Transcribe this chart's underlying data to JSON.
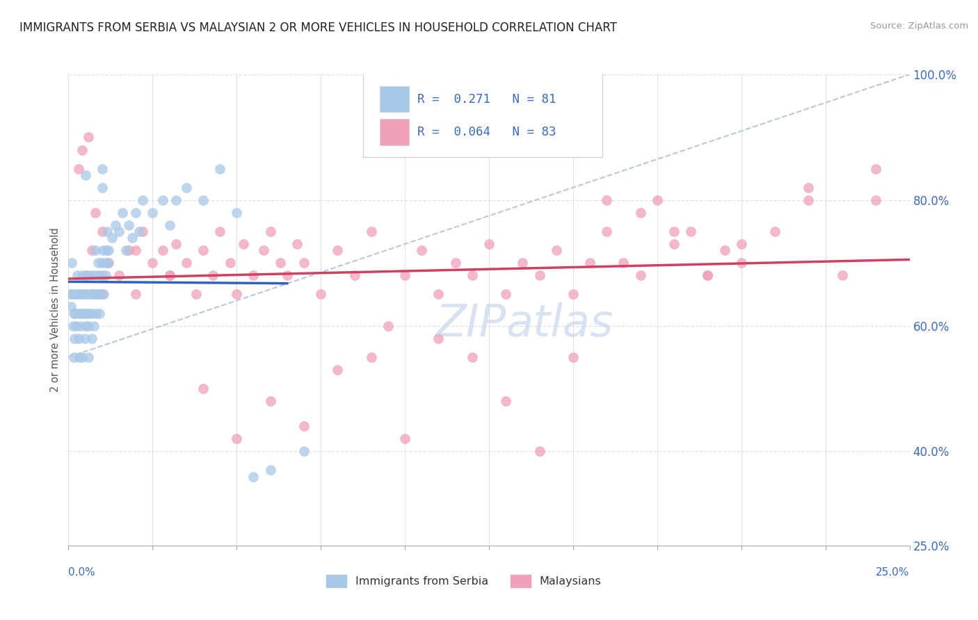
{
  "title": "IMMIGRANTS FROM SERBIA VS MALAYSIAN 2 OR MORE VEHICLES IN HOUSEHOLD CORRELATION CHART",
  "source": "Source: ZipAtlas.com",
  "xmin": 0.0,
  "xmax": 25.0,
  "ymin": 25.0,
  "ymax": 100.0,
  "legend_r1": "R =  0.271",
  "legend_n1": "N = 81",
  "legend_r2": "R =  0.064",
  "legend_n2": "N = 83",
  "serbia_color": "#a8c8e8",
  "malaysian_color": "#f0a0b8",
  "serbia_trend_color": "#3060c0",
  "malaysian_trend_color": "#d04060",
  "ref_line_color": "#b8c8d8",
  "background_color": "#ffffff",
  "watermark_color": "#c8d8ec",
  "yticks": [
    25.0,
    40.0,
    60.0,
    80.0,
    100.0
  ],
  "grid_color": "#e0e0e0",
  "ylabel": "2 or more Vehicles in Household",
  "legend1_label": "Immigrants from Serbia",
  "legend2_label": "Malaysians",
  "serbia_x": [
    0.05,
    0.08,
    0.1,
    0.12,
    0.13,
    0.15,
    0.15,
    0.18,
    0.2,
    0.2,
    0.22,
    0.25,
    0.28,
    0.3,
    0.3,
    0.32,
    0.35,
    0.35,
    0.38,
    0.4,
    0.4,
    0.42,
    0.45,
    0.48,
    0.5,
    0.5,
    0.52,
    0.55,
    0.58,
    0.6,
    0.6,
    0.62,
    0.65,
    0.68,
    0.7,
    0.7,
    0.72,
    0.75,
    0.78,
    0.8,
    0.8,
    0.82,
    0.85,
    0.88,
    0.9,
    0.92,
    0.95,
    0.98,
    1.0,
    1.02,
    1.05,
    1.08,
    1.1,
    1.12,
    1.15,
    1.18,
    1.2,
    1.3,
    1.4,
    1.5,
    1.6,
    1.7,
    1.8,
    1.9,
    2.0,
    2.1,
    2.2,
    2.5,
    2.8,
    3.0,
    3.2,
    3.5,
    4.0,
    4.5,
    5.0,
    5.5,
    6.0,
    7.0,
    1.0,
    1.0,
    0.5
  ],
  "serbia_y": [
    65.0,
    63.0,
    70.0,
    65.0,
    60.0,
    55.0,
    62.0,
    58.0,
    65.0,
    62.0,
    60.0,
    68.0,
    65.0,
    62.0,
    58.0,
    55.0,
    60.0,
    65.0,
    62.0,
    55.0,
    68.0,
    65.0,
    62.0,
    58.0,
    60.0,
    65.0,
    62.0,
    68.0,
    65.0,
    60.0,
    55.0,
    62.0,
    68.0,
    65.0,
    58.0,
    62.0,
    65.0,
    60.0,
    68.0,
    65.0,
    72.0,
    62.0,
    65.0,
    70.0,
    68.0,
    62.0,
    65.0,
    70.0,
    68.0,
    72.0,
    65.0,
    70.0,
    68.0,
    72.0,
    75.0,
    70.0,
    72.0,
    74.0,
    76.0,
    75.0,
    78.0,
    72.0,
    76.0,
    74.0,
    78.0,
    75.0,
    80.0,
    78.0,
    80.0,
    76.0,
    80.0,
    82.0,
    80.0,
    85.0,
    78.0,
    36.0,
    37.0,
    40.0,
    85.0,
    82.0,
    84.0
  ],
  "malaysian_x": [
    0.3,
    0.5,
    0.7,
    0.8,
    1.0,
    1.2,
    1.5,
    1.8,
    2.0,
    2.2,
    2.5,
    2.8,
    3.0,
    3.2,
    3.5,
    3.8,
    4.0,
    4.3,
    4.5,
    4.8,
    5.0,
    5.2,
    5.5,
    5.8,
    6.0,
    6.3,
    6.5,
    6.8,
    7.0,
    7.5,
    8.0,
    8.5,
    9.0,
    9.5,
    10.0,
    10.5,
    11.0,
    11.5,
    12.0,
    12.5,
    13.0,
    13.5,
    14.0,
    14.5,
    15.0,
    15.5,
    16.0,
    16.5,
    17.0,
    17.5,
    18.0,
    18.5,
    19.0,
    19.5,
    20.0,
    21.0,
    22.0,
    23.0,
    24.0,
    1.0,
    2.0,
    3.0,
    4.0,
    5.0,
    6.0,
    7.0,
    8.0,
    9.0,
    10.0,
    11.0,
    12.0,
    13.0,
    14.0,
    15.0,
    16.0,
    17.0,
    18.0,
    19.0,
    20.0,
    22.0,
    24.0,
    0.6,
    0.4
  ],
  "malaysian_y": [
    85.0,
    68.0,
    72.0,
    78.0,
    75.0,
    70.0,
    68.0,
    72.0,
    65.0,
    75.0,
    70.0,
    72.0,
    68.0,
    73.0,
    70.0,
    65.0,
    72.0,
    68.0,
    75.0,
    70.0,
    65.0,
    73.0,
    68.0,
    72.0,
    75.0,
    70.0,
    68.0,
    73.0,
    70.0,
    65.0,
    72.0,
    68.0,
    75.0,
    60.0,
    68.0,
    72.0,
    65.0,
    70.0,
    68.0,
    73.0,
    65.0,
    70.0,
    68.0,
    72.0,
    65.0,
    70.0,
    75.0,
    70.0,
    68.0,
    80.0,
    73.0,
    75.0,
    68.0,
    72.0,
    70.0,
    75.0,
    80.0,
    68.0,
    85.0,
    65.0,
    72.0,
    68.0,
    50.0,
    42.0,
    48.0,
    44.0,
    53.0,
    55.0,
    42.0,
    58.0,
    55.0,
    48.0,
    40.0,
    55.0,
    80.0,
    78.0,
    75.0,
    68.0,
    73.0,
    82.0,
    80.0,
    90.0,
    88.0
  ]
}
